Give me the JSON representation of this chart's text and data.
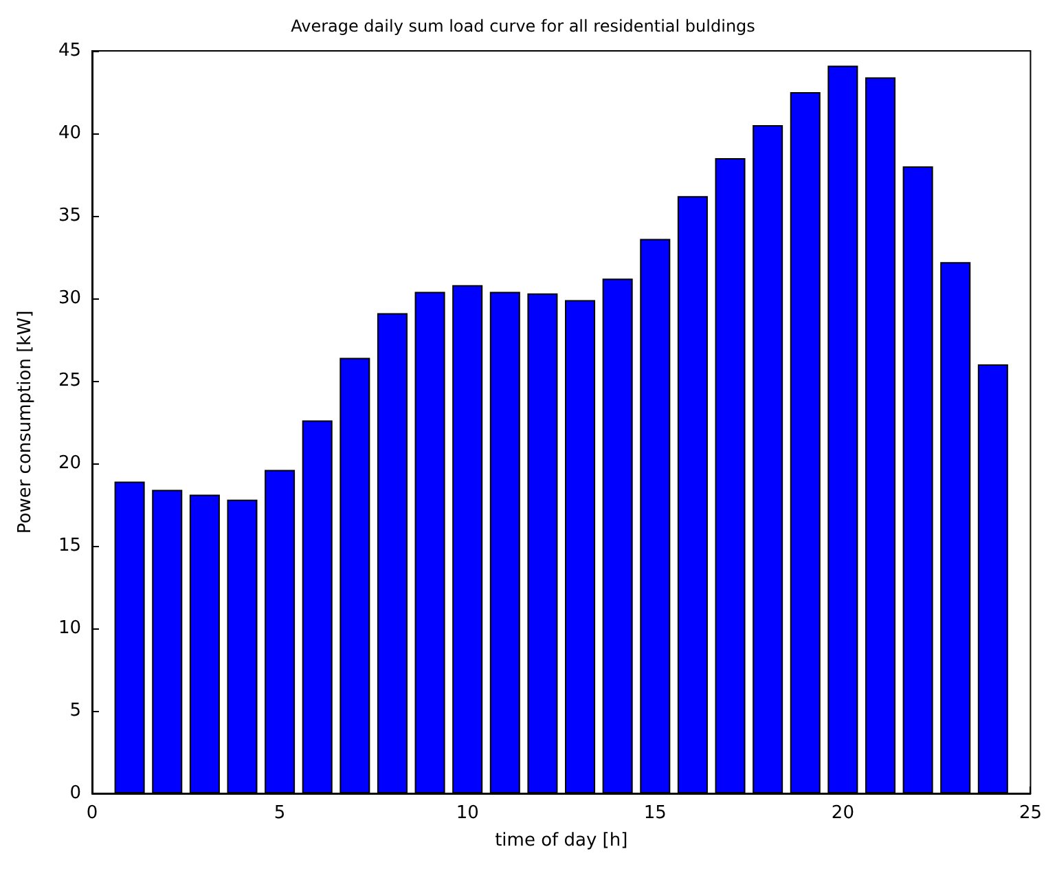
{
  "chart_data": {
    "type": "bar",
    "title": "Average daily sum load curve for all residential buldings",
    "xlabel": "time of day [h]",
    "ylabel": "Power consumption [kW]",
    "x": [
      1,
      2,
      3,
      4,
      5,
      6,
      7,
      8,
      9,
      10,
      11,
      12,
      13,
      14,
      15,
      16,
      17,
      18,
      19,
      20,
      21,
      22,
      23,
      24
    ],
    "values": [
      18.9,
      18.4,
      18.1,
      17.8,
      19.6,
      22.6,
      26.4,
      29.1,
      30.4,
      30.8,
      30.4,
      30.3,
      29.9,
      31.2,
      33.6,
      36.2,
      38.5,
      40.5,
      42.5,
      44.1,
      43.4,
      38,
      32.2,
      26
    ],
    "color": "#0000ff",
    "xlim": [
      0,
      25
    ],
    "xticks": [
      0,
      5,
      10,
      15,
      20,
      25
    ],
    "ylim": [
      0,
      45
    ],
    "yticks": [
      0,
      5,
      10,
      15,
      20,
      25,
      30,
      35,
      40,
      45
    ],
    "grid": false
  }
}
